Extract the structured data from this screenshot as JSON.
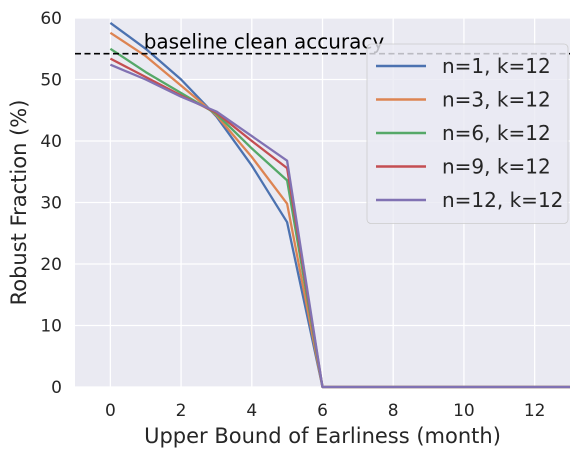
{
  "chart_data": {
    "type": "line",
    "xlabel": "Upper Bound of Earliness (month)",
    "ylabel": "Robust Fraction (%)",
    "xlim": [
      -1,
      13
    ],
    "ylim": [
      0,
      60
    ],
    "x_ticks": [
      0,
      2,
      4,
      6,
      8,
      10,
      12
    ],
    "y_ticks": [
      0,
      10,
      20,
      30,
      40,
      50,
      60
    ],
    "grid": true,
    "legend_position": "upper right",
    "x": [
      0,
      1,
      2,
      3,
      4,
      5,
      6,
      7,
      8,
      9,
      10,
      11,
      12,
      13
    ],
    "series": [
      {
        "name": "n=1, k=12",
        "color": "#4c72b0",
        "values": [
          59.2,
          55.0,
          50.0,
          44.0,
          36.0,
          26.8,
          0,
          0,
          0,
          0,
          0,
          0,
          0,
          0
        ]
      },
      {
        "name": "n=3, k=12",
        "color": "#dd8452",
        "values": [
          57.6,
          53.8,
          49.0,
          44.2,
          37.4,
          29.8,
          0,
          0,
          0,
          0,
          0,
          0,
          0,
          0
        ]
      },
      {
        "name": "n=6, k=12",
        "color": "#55a868",
        "values": [
          55.0,
          51.2,
          47.8,
          44.4,
          38.8,
          33.6,
          0,
          0,
          0,
          0,
          0,
          0,
          0,
          0
        ]
      },
      {
        "name": "n=9, k=12",
        "color": "#c44e52",
        "values": [
          53.4,
          50.4,
          47.4,
          44.6,
          40.0,
          35.6,
          0,
          0,
          0,
          0,
          0,
          0,
          0,
          0
        ]
      },
      {
        "name": "n=12, k=12",
        "color": "#8172b3",
        "values": [
          52.4,
          50.0,
          47.2,
          44.8,
          40.8,
          36.8,
          0,
          0,
          0,
          0,
          0,
          0,
          0,
          0
        ]
      }
    ],
    "reference_line": {
      "label": "baseline clean accuracy",
      "y": 54.2,
      "style": "dashed",
      "color": "#000000"
    }
  }
}
